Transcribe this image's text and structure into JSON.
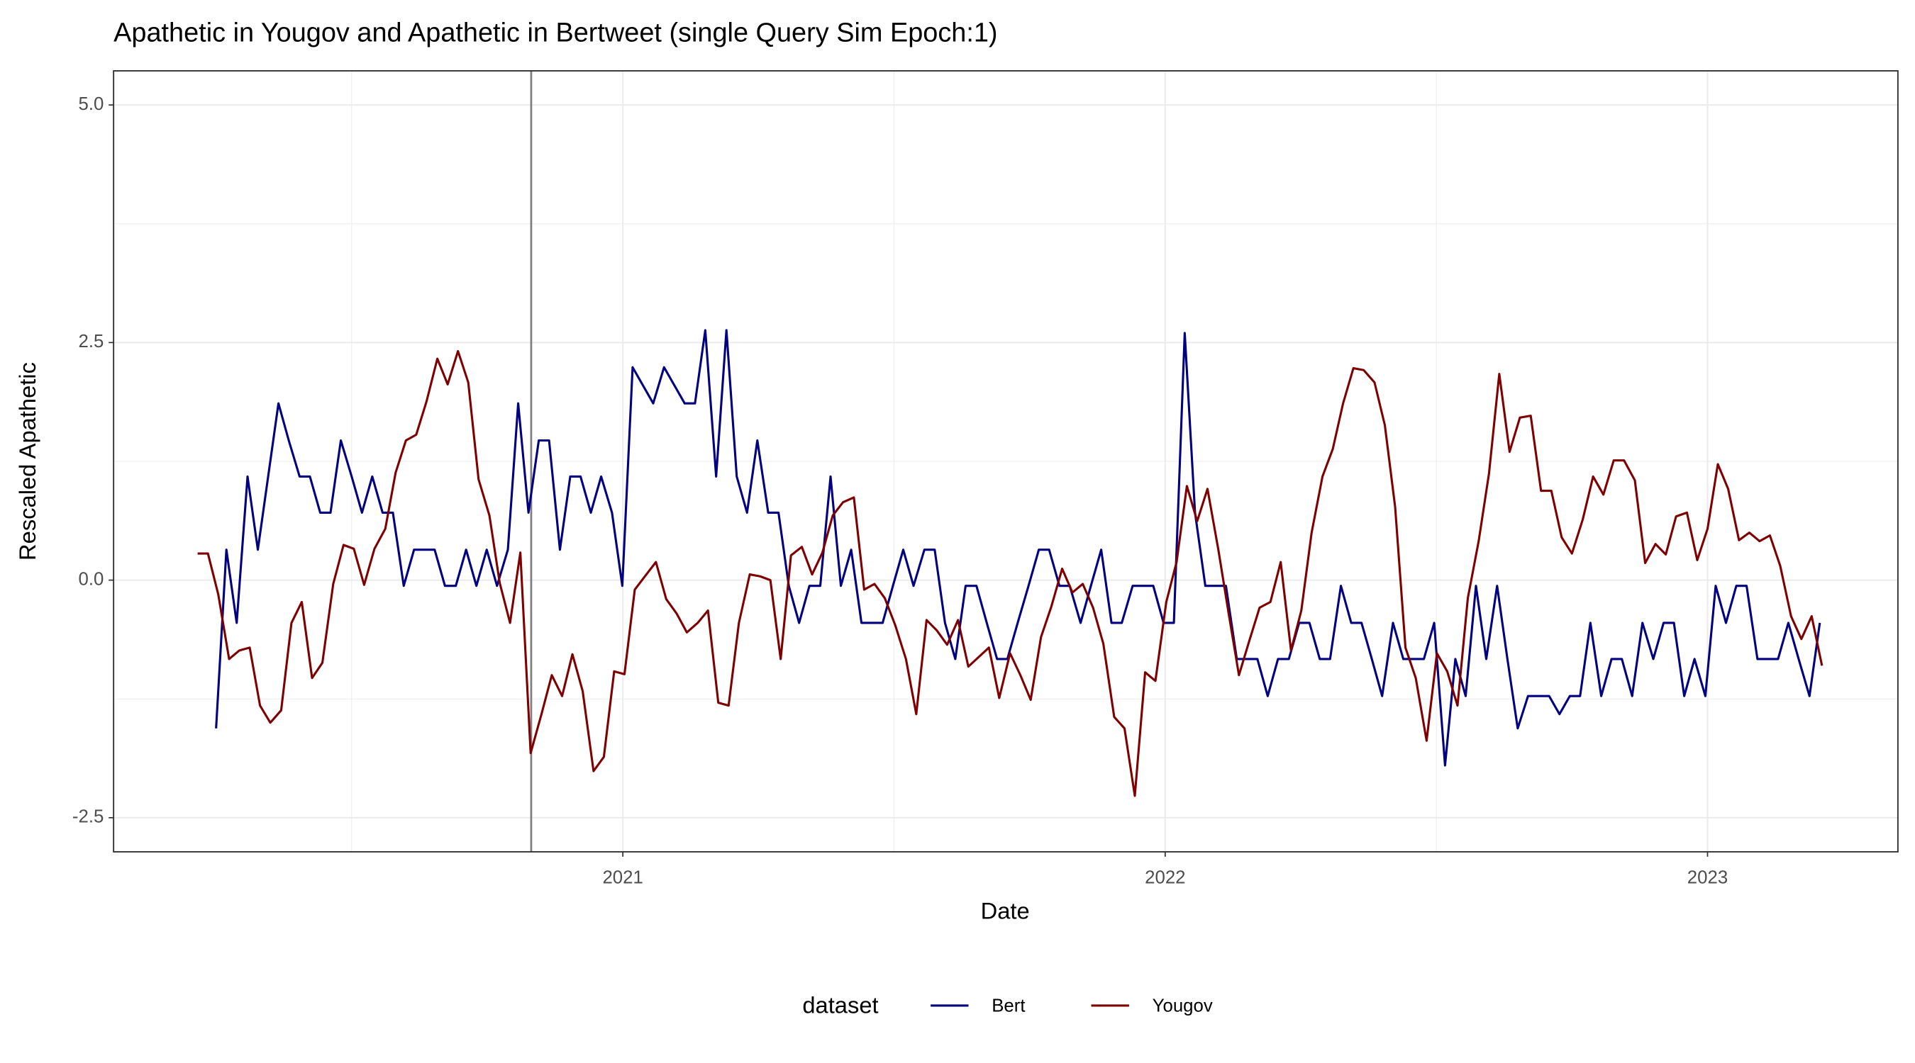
{
  "chart_data": {
    "type": "line",
    "title": "Apathetic in Yougov and Apathetic in Bertweet (single Query Sim Epoch:1)",
    "x_label": "Date",
    "y_label": "Rescaled  Apathetic",
    "legend_title": "dataset",
    "legend_position": "bottom",
    "grid": true,
    "xlim": [
      2020.061,
      2023.351
    ],
    "xticks": [
      2021,
      2022,
      2023
    ],
    "x_minor_ticks": [
      2020.5,
      2021.5,
      2022.5
    ],
    "ylim": [
      -2.859,
      5.359
    ],
    "yticks": [
      {
        "value": -2.5,
        "label": "-2.5"
      },
      {
        "value": 0,
        "label": "0.0"
      },
      {
        "value": 2.5,
        "label": "2.5"
      },
      {
        "value": 5,
        "label": "5.0"
      }
    ],
    "y_minor_ticks": [
      -1.25,
      1.25,
      3.75
    ],
    "vertical_line_x": 2020.831,
    "vertical_line_color": "#7f7f7f",
    "series": [
      {
        "name": "Bert",
        "color": "#000080",
        "x": [
          2020.25,
          2020.269,
          2020.288,
          2020.308,
          2020.327,
          2020.346,
          2020.365,
          2020.384,
          2020.404,
          2020.423,
          2020.442,
          2020.461,
          2020.48,
          2020.5,
          2020.519,
          2020.538,
          2020.557,
          2020.576,
          2020.596,
          2020.615,
          2020.634,
          2020.653,
          2020.672,
          2020.692,
          2020.711,
          2020.73,
          2020.749,
          2020.768,
          2020.788,
          2020.807,
          2020.826,
          2020.845,
          2020.864,
          2020.884,
          2020.903,
          2020.922,
          2020.941,
          2020.96,
          2020.98,
          2020.999,
          2021.018,
          2021.037,
          2021.056,
          2021.076,
          2021.095,
          2021.114,
          2021.133,
          2021.152,
          2021.172,
          2021.191,
          2021.21,
          2021.229,
          2021.248,
          2021.268,
          2021.287,
          2021.306,
          2021.325,
          2021.344,
          2021.364,
          2021.383,
          2021.402,
          2021.421,
          2021.44,
          2021.46,
          2021.479,
          2021.498,
          2021.517,
          2021.536,
          2021.556,
          2021.575,
          2021.594,
          2021.613,
          2021.632,
          2021.652,
          2021.671,
          2021.69,
          2021.709,
          2021.728,
          2021.748,
          2021.767,
          2021.786,
          2021.805,
          2021.824,
          2021.844,
          2021.863,
          2021.882,
          2021.901,
          2021.92,
          2021.94,
          2021.959,
          2021.978,
          2021.997,
          2022.016,
          2022.036,
          2022.055,
          2022.074,
          2022.093,
          2022.112,
          2022.132,
          2022.151,
          2022.17,
          2022.189,
          2022.208,
          2022.228,
          2022.247,
          2022.266,
          2022.285,
          2022.304,
          2022.324,
          2022.343,
          2022.362,
          2022.381,
          2022.4,
          2022.42,
          2022.439,
          2022.458,
          2022.477,
          2022.496,
          2022.516,
          2022.535,
          2022.554,
          2022.573,
          2022.592,
          2022.612,
          2022.631,
          2022.65,
          2022.669,
          2022.688,
          2022.708,
          2022.727,
          2022.746,
          2022.765,
          2022.784,
          2022.804,
          2022.823,
          2022.842,
          2022.861,
          2022.88,
          2022.9,
          2022.919,
          2022.938,
          2022.957,
          2022.976,
          2022.996,
          2023.015,
          2023.034,
          2023.053,
          2023.072,
          2023.092,
          2023.111,
          2023.13,
          2023.149,
          2023.168,
          2023.188,
          2023.207
        ],
        "values": [
          -1.56,
          0.32,
          -0.45,
          1.09,
          0.32,
          1.09,
          1.86,
          1.47,
          1.09,
          1.09,
          0.71,
          0.71,
          1.47,
          1.09,
          0.71,
          1.09,
          0.71,
          0.71,
          -0.06,
          0.32,
          0.32,
          0.32,
          -0.06,
          -0.06,
          0.32,
          -0.06,
          0.32,
          -0.06,
          0.32,
          1.86,
          0.71,
          1.47,
          1.47,
          0.32,
          1.09,
          1.09,
          0.71,
          1.09,
          0.71,
          -0.06,
          2.24,
          2.05,
          1.86,
          2.24,
          2.05,
          1.86,
          1.86,
          2.63,
          1.09,
          2.63,
          1.09,
          0.71,
          1.47,
          0.71,
          0.71,
          -0.06,
          -0.45,
          -0.06,
          -0.06,
          1.09,
          -0.06,
          0.32,
          -0.45,
          -0.45,
          -0.45,
          -0.06,
          0.32,
          -0.06,
          0.32,
          0.32,
          -0.45,
          -0.83,
          -0.06,
          -0.06,
          -0.45,
          -0.83,
          -0.83,
          -0.45,
          -0.06,
          0.32,
          0.32,
          -0.06,
          -0.06,
          -0.45,
          -0.06,
          0.32,
          -0.45,
          -0.45,
          -0.06,
          -0.06,
          -0.06,
          -0.45,
          -0.45,
          2.6,
          0.71,
          -0.06,
          -0.06,
          -0.06,
          -0.83,
          -0.83,
          -0.83,
          -1.22,
          -0.83,
          -0.83,
          -0.45,
          -0.45,
          -0.83,
          -0.83,
          -0.06,
          -0.45,
          -0.45,
          -0.83,
          -1.22,
          -0.45,
          -0.83,
          -0.83,
          -0.83,
          -0.45,
          -1.95,
          -0.83,
          -1.22,
          -0.06,
          -0.83,
          -0.06,
          -0.83,
          -1.56,
          -1.22,
          -1.22,
          -1.22,
          -1.41,
          -1.22,
          -1.22,
          -0.45,
          -1.22,
          -0.83,
          -0.83,
          -1.22,
          -0.45,
          -0.83,
          -0.45,
          -0.45,
          -1.22,
          -0.83,
          -1.22,
          -0.06,
          -0.45,
          -0.06,
          -0.06,
          -0.83,
          -0.83,
          -0.83,
          -0.45,
          -0.83,
          -1.22,
          -0.45
        ]
      },
      {
        "name": "Yougov",
        "color": "#7f0000",
        "x": [
          2020.216,
          2020.235,
          2020.254,
          2020.274,
          2020.293,
          2020.312,
          2020.331,
          2020.35,
          2020.37,
          2020.389,
          2020.408,
          2020.427,
          2020.446,
          2020.466,
          2020.485,
          2020.504,
          2020.523,
          2020.542,
          2020.562,
          2020.581,
          2020.6,
          2020.619,
          2020.638,
          2020.658,
          2020.677,
          2020.696,
          2020.715,
          2020.734,
          2020.754,
          2020.773,
          2020.792,
          2020.811,
          2020.83,
          2020.85,
          2020.869,
          2020.888,
          2020.907,
          2020.926,
          2020.946,
          2020.965,
          2020.984,
          2021.003,
          2021.022,
          2021.042,
          2021.061,
          2021.08,
          2021.099,
          2021.118,
          2021.138,
          2021.157,
          2021.176,
          2021.195,
          2021.214,
          2021.234,
          2021.253,
          2021.272,
          2021.291,
          2021.31,
          2021.33,
          2021.349,
          2021.368,
          2021.387,
          2021.406,
          2021.426,
          2021.445,
          2021.464,
          2021.483,
          2021.502,
          2021.522,
          2021.541,
          2021.56,
          2021.579,
          2021.598,
          2021.618,
          2021.637,
          2021.656,
          2021.675,
          2021.694,
          2021.714,
          2021.733,
          2021.752,
          2021.771,
          2021.79,
          2021.81,
          2021.829,
          2021.848,
          2021.867,
          2021.886,
          2021.906,
          2021.925,
          2021.944,
          2021.963,
          2021.982,
          2022.002,
          2022.021,
          2022.04,
          2022.059,
          2022.078,
          2022.098,
          2022.117,
          2022.136,
          2022.155,
          2022.174,
          2022.194,
          2022.213,
          2022.232,
          2022.251,
          2022.27,
          2022.29,
          2022.309,
          2022.328,
          2022.347,
          2022.366,
          2022.386,
          2022.405,
          2022.424,
          2022.443,
          2022.462,
          2022.482,
          2022.501,
          2022.52,
          2022.539,
          2022.558,
          2022.578,
          2022.597,
          2022.616,
          2022.635,
          2022.654,
          2022.674,
          2022.693,
          2022.712,
          2022.731,
          2022.75,
          2022.77,
          2022.789,
          2022.808,
          2022.827,
          2022.846,
          2022.866,
          2022.885,
          2022.904,
          2022.923,
          2022.942,
          2022.962,
          2022.981,
          2023.0,
          2023.019,
          2023.038,
          2023.058,
          2023.077,
          2023.096,
          2023.115,
          2023.134,
          2023.154,
          2023.173,
          2023.192,
          2023.211
        ],
        "values": [
          0.28,
          0.28,
          -0.15,
          -0.83,
          -0.74,
          -0.71,
          -1.32,
          -1.5,
          -1.37,
          -0.45,
          -0.23,
          -1.03,
          -0.87,
          -0.04,
          0.37,
          0.33,
          -0.05,
          0.33,
          0.54,
          1.13,
          1.47,
          1.53,
          1.88,
          2.33,
          2.06,
          2.41,
          2.08,
          1.06,
          0.68,
          -0.03,
          -0.45,
          0.29,
          -1.82,
          -1.41,
          -1.0,
          -1.22,
          -0.78,
          -1.17,
          -2.01,
          -1.86,
          -0.96,
          -0.99,
          -0.1,
          0.05,
          0.19,
          -0.2,
          -0.35,
          -0.55,
          -0.45,
          -0.32,
          -1.29,
          -1.32,
          -0.45,
          0.06,
          0.04,
          0,
          -0.83,
          0.26,
          0.35,
          0.06,
          0.29,
          0.68,
          0.82,
          0.87,
          -0.1,
          -0.04,
          -0.19,
          -0.47,
          -0.83,
          -1.41,
          -0.42,
          -0.53,
          -0.68,
          -0.42,
          -0.91,
          -0.81,
          -0.71,
          -1.24,
          -0.77,
          -1.0,
          -1.26,
          -0.6,
          -0.28,
          0.12,
          -0.13,
          -0.04,
          -0.29,
          -0.67,
          -1.44,
          -1.56,
          -2.27,
          -0.97,
          -1.06,
          -0.23,
          0.19,
          0.99,
          0.62,
          0.96,
          0.32,
          -0.35,
          -1.0,
          -0.64,
          -0.29,
          -0.23,
          0.19,
          -0.74,
          -0.32,
          0.5,
          1.09,
          1.38,
          1.86,
          2.23,
          2.21,
          2.08,
          1.63,
          0.77,
          -0.71,
          -1.03,
          -1.69,
          -0.77,
          -0.96,
          -1.32,
          -0.19,
          0.41,
          1.12,
          2.17,
          1.35,
          1.71,
          1.73,
          0.94,
          0.94,
          0.45,
          0.28,
          0.64,
          1.09,
          0.9,
          1.26,
          1.26,
          1.05,
          0.18,
          0.38,
          0.27,
          0.67,
          0.71,
          0.21,
          0.54,
          1.22,
          0.96,
          0.42,
          0.5,
          0.41,
          0.47,
          0.15,
          -0.38,
          -0.62,
          -0.38,
          -0.9
        ]
      }
    ]
  }
}
